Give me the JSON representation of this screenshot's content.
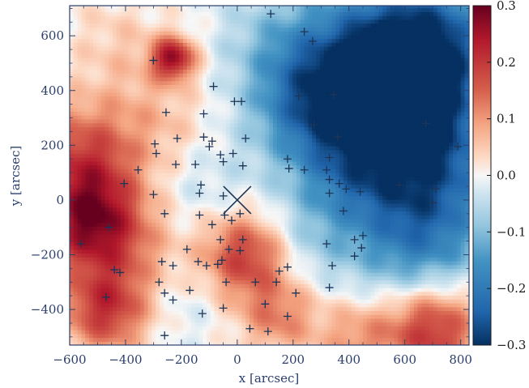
{
  "chart_data": {
    "type": "heatmap",
    "title": "",
    "xlabel": "x [arcsec]",
    "ylabel": "y [arcsec]",
    "xlim": [
      -600,
      830
    ],
    "ylim": [
      -530,
      710
    ],
    "xticks": [
      -600,
      -400,
      -200,
      0,
      200,
      400,
      600,
      800
    ],
    "yticks": [
      -400,
      -200,
      0,
      200,
      400,
      600
    ],
    "xtick_labels": [
      "−600",
      "−400",
      "−200",
      "0",
      "200",
      "400",
      "600",
      "800"
    ],
    "ytick_labels": [
      "−400",
      "−200",
      "0",
      "200",
      "400",
      "600"
    ],
    "colorbar": {
      "range": [
        -0.3,
        0.3
      ],
      "ticks": [
        0.3,
        0.2,
        0.1,
        0.0,
        -0.1,
        -0.2,
        -0.3
      ],
      "tick_labels": [
        "0.3",
        "0.2",
        "0.1",
        "0.0",
        "−0.1",
        "−0.2",
        "−0.3"
      ],
      "colormap": "RdBu_r"
    },
    "center_marker": {
      "x": 0,
      "y": 0,
      "symbol": "x"
    },
    "field_blobs": [
      {
        "x": -520,
        "y": -80,
        "value": 0.26,
        "r": 130
      },
      {
        "x": -560,
        "y": 160,
        "value": 0.16,
        "r": 140
      },
      {
        "x": -230,
        "y": 520,
        "value": 0.25,
        "r": 55
      },
      {
        "x": -470,
        "y": -400,
        "value": 0.2,
        "r": 110
      },
      {
        "x": 30,
        "y": -200,
        "value": 0.2,
        "r": 110
      },
      {
        "x": 150,
        "y": -420,
        "value": 0.12,
        "r": 100
      },
      {
        "x": 700,
        "y": -470,
        "value": 0.22,
        "r": 120
      },
      {
        "x": 430,
        "y": -500,
        "value": 0.1,
        "r": 100
      },
      {
        "x": 480,
        "y": 420,
        "value": -0.29,
        "r": 220
      },
      {
        "x": 680,
        "y": 560,
        "value": -0.22,
        "r": 180
      },
      {
        "x": 700,
        "y": 150,
        "value": -0.18,
        "r": 190
      },
      {
        "x": 650,
        "y": -150,
        "value": -0.16,
        "r": 170
      },
      {
        "x": 260,
        "y": 350,
        "value": -0.12,
        "r": 160
      },
      {
        "x": 120,
        "y": 600,
        "value": -0.05,
        "r": 140
      },
      {
        "x": -300,
        "y": 300,
        "value": 0.06,
        "r": 150
      },
      {
        "x": -350,
        "y": -200,
        "value": 0.05,
        "r": 120
      },
      {
        "x": -120,
        "y": 50,
        "value": -0.04,
        "r": 120
      },
      {
        "x": 250,
        "y": -150,
        "value": -0.06,
        "r": 130
      },
      {
        "x": -200,
        "y": -380,
        "value": -0.03,
        "r": 110
      },
      {
        "x": -430,
        "y": 580,
        "value": 0.04,
        "r": 120
      },
      {
        "x": 400,
        "y": 80,
        "value": -0.08,
        "r": 140
      }
    ],
    "sources": [
      [
        120,
        680
      ],
      [
        240,
        615
      ],
      [
        270,
        580
      ],
      [
        -300,
        510
      ],
      [
        -85,
        415
      ],
      [
        -10,
        360
      ],
      [
        15,
        360
      ],
      [
        220,
        380
      ],
      [
        345,
        385
      ],
      [
        -255,
        320
      ],
      [
        -120,
        315
      ],
      [
        275,
        275
      ],
      [
        675,
        280
      ],
      [
        -295,
        205
      ],
      [
        -215,
        225
      ],
      [
        -120,
        230
      ],
      [
        -90,
        215
      ],
      [
        -100,
        195
      ],
      [
        30,
        225
      ],
      [
        360,
        230
      ],
      [
        -290,
        170
      ],
      [
        -150,
        130
      ],
      [
        -220,
        130
      ],
      [
        -60,
        165
      ],
      [
        -15,
        170
      ],
      [
        330,
        155
      ],
      [
        790,
        195
      ],
      [
        -355,
        110
      ],
      [
        -50,
        140
      ],
      [
        20,
        125
      ],
      [
        180,
        150
      ],
      [
        185,
        115
      ],
      [
        240,
        110
      ],
      [
        320,
        110
      ],
      [
        -405,
        60
      ],
      [
        -130,
        55
      ],
      [
        330,
        75
      ],
      [
        365,
        60
      ],
      [
        390,
        40
      ],
      [
        440,
        30
      ],
      [
        580,
        55
      ],
      [
        710,
        40
      ],
      [
        -300,
        20
      ],
      [
        -135,
        25
      ],
      [
        -50,
        15
      ],
      [
        330,
        25
      ],
      [
        10,
        -50
      ],
      [
        380,
        -40
      ],
      [
        -260,
        -50
      ],
      [
        -135,
        -55
      ],
      [
        -45,
        -55
      ],
      [
        700,
        -10
      ],
      [
        -460,
        -100
      ],
      [
        -90,
        -90
      ],
      [
        -20,
        -75
      ],
      [
        -560,
        -160
      ],
      [
        -60,
        -145
      ],
      [
        20,
        -145
      ],
      [
        450,
        -130
      ],
      [
        -180,
        -180
      ],
      [
        -30,
        -180
      ],
      [
        10,
        -185
      ],
      [
        320,
        -160
      ],
      [
        420,
        -145
      ],
      [
        445,
        -175
      ],
      [
        -55,
        -220
      ],
      [
        -110,
        -240
      ],
      [
        420,
        -205
      ],
      [
        -270,
        -225
      ],
      [
        -230,
        -240
      ],
      [
        -70,
        -235
      ],
      [
        -140,
        -225
      ],
      [
        340,
        -240
      ],
      [
        -440,
        -255
      ],
      [
        -420,
        -265
      ],
      [
        180,
        -245
      ],
      [
        -280,
        -300
      ],
      [
        -260,
        -340
      ],
      [
        -170,
        -330
      ],
      [
        -40,
        -300
      ],
      [
        65,
        -300
      ],
      [
        150,
        -260
      ],
      [
        140,
        -300
      ],
      [
        330,
        -320
      ],
      [
        -470,
        -355
      ],
      [
        -230,
        -365
      ],
      [
        -50,
        -395
      ],
      [
        100,
        -380
      ],
      [
        210,
        -340
      ],
      [
        -125,
        -415
      ],
      [
        180,
        -425
      ],
      [
        -260,
        -495
      ],
      [
        45,
        -470
      ],
      [
        110,
        -480
      ]
    ]
  }
}
